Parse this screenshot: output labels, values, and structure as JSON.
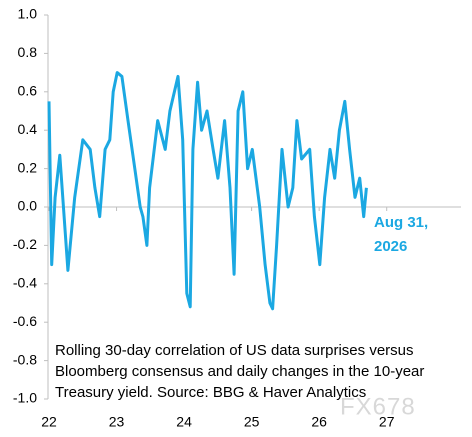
{
  "chart_data": {
    "type": "line",
    "x": [
      22.0,
      22.04,
      22.09,
      22.16,
      22.28,
      22.38,
      22.5,
      22.61,
      22.68,
      22.75,
      22.83,
      22.9,
      22.95,
      23.01,
      23.08,
      23.17,
      23.27,
      23.35,
      23.39,
      23.45,
      23.49,
      23.61,
      23.72,
      23.79,
      23.91,
      23.98,
      24.04,
      24.09,
      24.13,
      24.2,
      24.26,
      24.34,
      24.43,
      24.5,
      24.6,
      24.68,
      24.74,
      24.8,
      24.87,
      24.94,
      25.01,
      25.12,
      25.2,
      25.27,
      25.31,
      25.37,
      25.45,
      25.54,
      25.61,
      25.67,
      25.74,
      25.86,
      25.93,
      26.01,
      26.08,
      26.16,
      26.23,
      26.3,
      26.38,
      26.45,
      26.53,
      26.6,
      26.66,
      26.7
    ],
    "series": [
      {
        "name": "Rolling 30-day correlation",
        "color": "#1ba8e2",
        "values": [
          0.55,
          -0.3,
          0.05,
          0.27,
          -0.33,
          0.05,
          0.35,
          0.3,
          0.1,
          -0.05,
          0.3,
          0.35,
          0.6,
          0.7,
          0.68,
          0.45,
          0.2,
          0.0,
          -0.05,
          -0.2,
          0.1,
          0.45,
          0.3,
          0.5,
          0.68,
          0.35,
          -0.45,
          -0.52,
          0.3,
          0.65,
          0.4,
          0.5,
          0.3,
          0.15,
          0.45,
          0.1,
          -0.35,
          0.5,
          0.6,
          0.2,
          0.3,
          0.0,
          -0.3,
          -0.5,
          -0.53,
          -0.2,
          0.3,
          0.0,
          0.1,
          0.45,
          0.25,
          0.3,
          -0.05,
          -0.3,
          0.05,
          0.3,
          0.15,
          0.4,
          0.55,
          0.3,
          0.05,
          0.15,
          -0.05,
          0.1
        ]
      }
    ],
    "xlim": [
      22,
      28.1
    ],
    "xticks": [
      22,
      23,
      24,
      25,
      26,
      27
    ],
    "ylim": [
      -1,
      1
    ],
    "yticks": [
      {
        "value": -1,
        "label": "-1.0"
      },
      -0.8,
      -0.6,
      -0.4,
      -0.2,
      {
        "value": 0,
        "label": "0.0"
      },
      0.2,
      0.4,
      0.6,
      0.8,
      {
        "value": 1,
        "label": "1.0"
      }
    ],
    "annotation": [
      "Aug 31,",
      "2026"
    ],
    "caption": [
      "Rolling 30-day correlation of US data surprises versus",
      "Bloomberg consensus and daily changes in the 10-year",
      "Treasury yield. Source: BBG & Haver Analytics"
    ],
    "watermark": "FX678"
  }
}
